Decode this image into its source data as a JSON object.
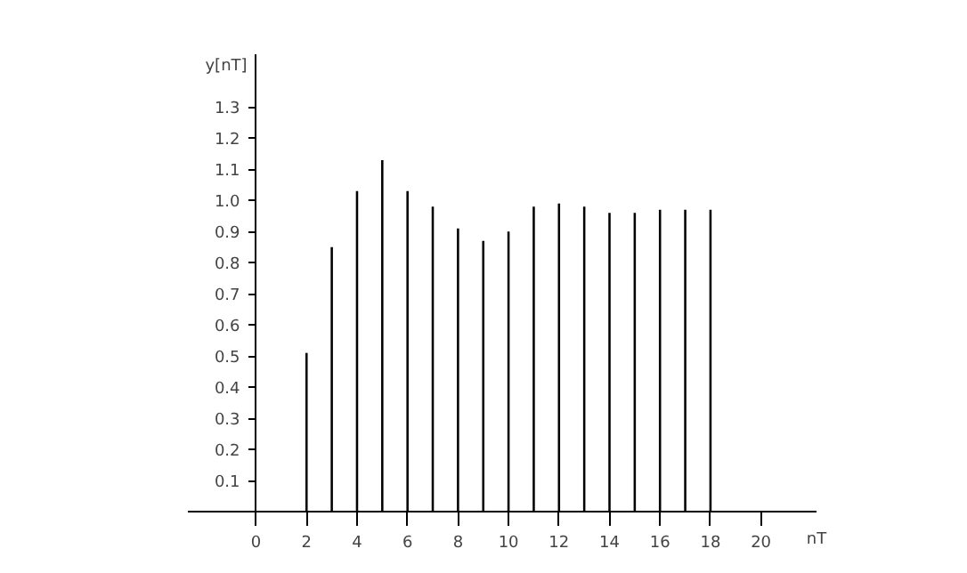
{
  "chart_data": {
    "type": "bar",
    "xlabel": "nT",
    "ylabel": "y[nT]",
    "color": "#000000",
    "x": [
      2,
      3,
      4,
      5,
      6,
      7,
      8,
      9,
      10,
      11,
      12,
      13,
      14,
      15,
      16,
      17,
      18
    ],
    "values": [
      0.51,
      0.85,
      1.03,
      1.13,
      1.03,
      0.98,
      0.91,
      0.87,
      0.9,
      0.98,
      0.99,
      0.98,
      0.96,
      0.96,
      0.97,
      0.97,
      0.97
    ],
    "xlim": [
      -2.7,
      22.2
    ],
    "ylim": [
      0,
      1.47
    ],
    "xticks": [
      0,
      2,
      4,
      6,
      8,
      10,
      12,
      14,
      16,
      18,
      20
    ],
    "yticks": [
      0.1,
      0.2,
      0.3,
      0.4,
      0.5,
      0.6,
      0.7,
      0.8,
      0.9,
      {
        "value": 1,
        "label": "1.0"
      },
      1.1,
      1.2,
      1.3
    ]
  }
}
